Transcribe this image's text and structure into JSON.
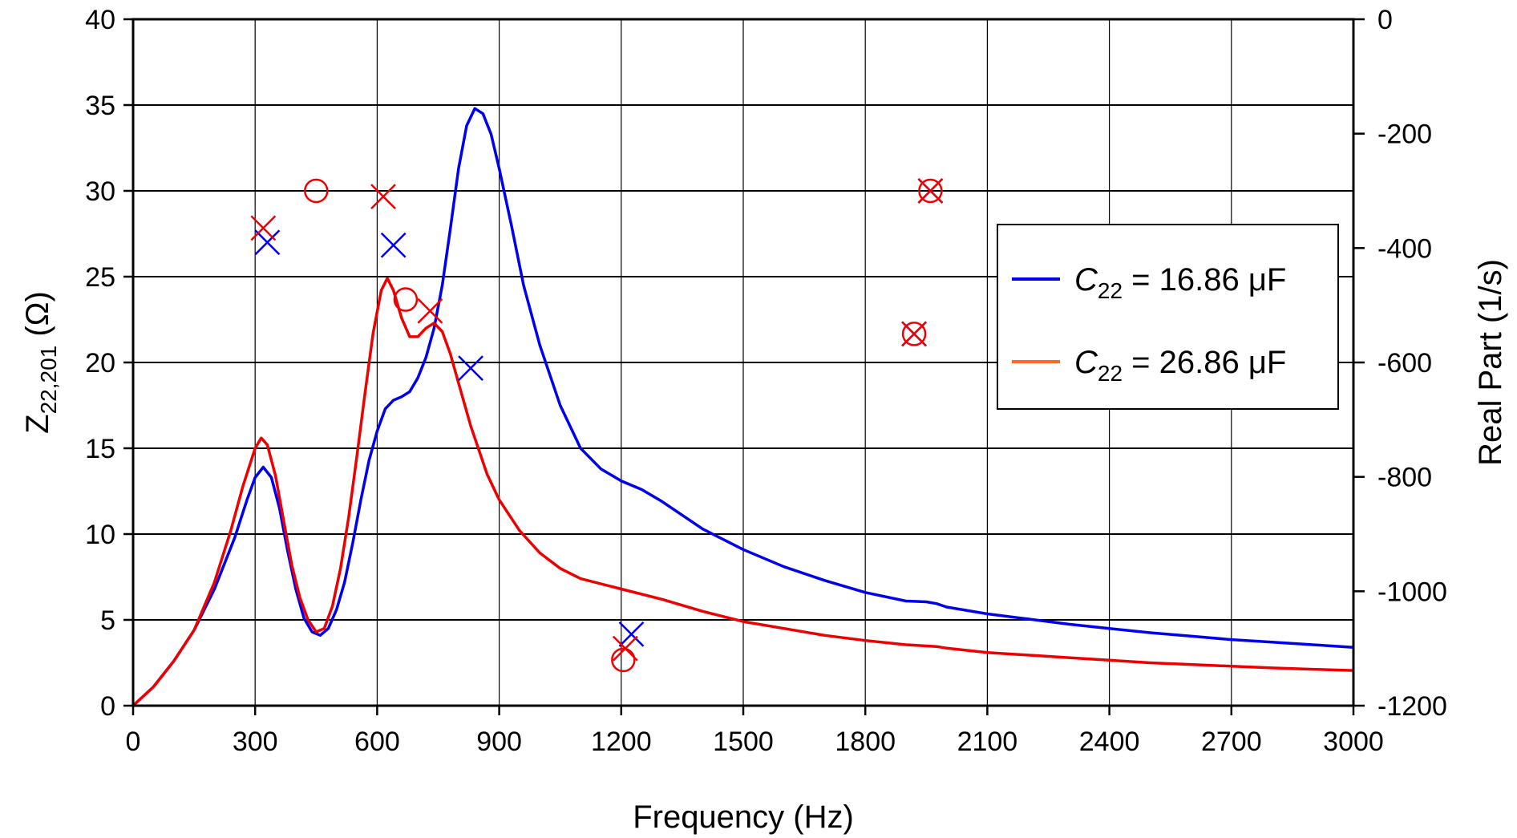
{
  "chart_data": {
    "type": "line",
    "xlabel": "Frequency (Hz)",
    "ylabel": "Z",
    "ylabel_sub": "22,201",
    "ylabel_unit": " (Ω)",
    "y2label": "Real Part (1/s)",
    "xlim": [
      0,
      3000
    ],
    "ylim": [
      0,
      40
    ],
    "y2lim": [
      -1200,
      0
    ],
    "xticks": [
      0,
      300,
      600,
      900,
      1200,
      1500,
      1800,
      2100,
      2400,
      2700,
      3000
    ],
    "yticks": [
      0,
      5,
      10,
      15,
      20,
      25,
      30,
      35,
      40
    ],
    "y2ticks": [
      0,
      -200,
      -400,
      -600,
      -800,
      -1000,
      -1200
    ],
    "grid": true,
    "legend_position": "right",
    "series": [
      {
        "name_italic": "C",
        "name_sub": "22",
        "name_rest": " = 16.86 μF",
        "color": "#0000ee",
        "points": [
          [
            0,
            0
          ],
          [
            50,
            1.1
          ],
          [
            100,
            2.6
          ],
          [
            150,
            4.4
          ],
          [
            200,
            6.8
          ],
          [
            250,
            9.8
          ],
          [
            280,
            12.0
          ],
          [
            300,
            13.3
          ],
          [
            320,
            13.9
          ],
          [
            340,
            13.3
          ],
          [
            360,
            11.5
          ],
          [
            380,
            9.0
          ],
          [
            400,
            6.8
          ],
          [
            420,
            5.1
          ],
          [
            440,
            4.3
          ],
          [
            460,
            4.1
          ],
          [
            480,
            4.5
          ],
          [
            500,
            5.6
          ],
          [
            520,
            7.2
          ],
          [
            540,
            9.5
          ],
          [
            560,
            12.0
          ],
          [
            580,
            14.3
          ],
          [
            600,
            16.0
          ],
          [
            620,
            17.3
          ],
          [
            640,
            17.8
          ],
          [
            660,
            18.0
          ],
          [
            680,
            18.3
          ],
          [
            700,
            19.1
          ],
          [
            720,
            20.3
          ],
          [
            740,
            22.0
          ],
          [
            760,
            24.5
          ],
          [
            780,
            27.8
          ],
          [
            800,
            31.3
          ],
          [
            820,
            33.8
          ],
          [
            840,
            34.8
          ],
          [
            860,
            34.5
          ],
          [
            880,
            33.3
          ],
          [
            900,
            31.3
          ],
          [
            930,
            28.0
          ],
          [
            960,
            24.5
          ],
          [
            1000,
            21.0
          ],
          [
            1050,
            17.5
          ],
          [
            1100,
            15.0
          ],
          [
            1150,
            13.8
          ],
          [
            1200,
            13.1
          ],
          [
            1250,
            12.6
          ],
          [
            1300,
            11.9
          ],
          [
            1400,
            10.3
          ],
          [
            1500,
            9.1
          ],
          [
            1600,
            8.1
          ],
          [
            1700,
            7.3
          ],
          [
            1800,
            6.6
          ],
          [
            1900,
            6.1
          ],
          [
            1950,
            6.05
          ],
          [
            1975,
            5.95
          ],
          [
            2000,
            5.75
          ],
          [
            2100,
            5.35
          ],
          [
            2200,
            5.05
          ],
          [
            2300,
            4.75
          ],
          [
            2400,
            4.5
          ],
          [
            2500,
            4.25
          ],
          [
            2600,
            4.05
          ],
          [
            2700,
            3.85
          ],
          [
            2800,
            3.7
          ],
          [
            2900,
            3.55
          ],
          [
            3000,
            3.4
          ]
        ],
        "poles_x": [
          [
            330,
            -390
          ],
          [
            640,
            -395
          ],
          [
            830,
            -610
          ],
          [
            1225,
            -1075
          ],
          [
            1960,
            -300
          ],
          [
            1920,
            -550
          ]
        ]
      },
      {
        "name_italic": "C",
        "name_sub": "22",
        "name_rest": " = 26.86 μF",
        "color": "#ee0000",
        "legend_color": "#ff6622",
        "points": [
          [
            0,
            0
          ],
          [
            50,
            1.1
          ],
          [
            100,
            2.6
          ],
          [
            150,
            4.4
          ],
          [
            200,
            7.2
          ],
          [
            240,
            10.2
          ],
          [
            270,
            12.8
          ],
          [
            300,
            15.0
          ],
          [
            315,
            15.6
          ],
          [
            330,
            15.2
          ],
          [
            350,
            13.4
          ],
          [
            370,
            10.8
          ],
          [
            390,
            8.2
          ],
          [
            410,
            6.3
          ],
          [
            430,
            5.0
          ],
          [
            450,
            4.3
          ],
          [
            470,
            4.5
          ],
          [
            490,
            5.8
          ],
          [
            510,
            8.0
          ],
          [
            530,
            11.0
          ],
          [
            550,
            14.5
          ],
          [
            570,
            18.2
          ],
          [
            590,
            21.7
          ],
          [
            610,
            24.2
          ],
          [
            625,
            24.9
          ],
          [
            640,
            24.2
          ],
          [
            660,
            22.6
          ],
          [
            680,
            21.5
          ],
          [
            700,
            21.5
          ],
          [
            720,
            22.0
          ],
          [
            740,
            22.3
          ],
          [
            760,
            21.8
          ],
          [
            780,
            20.5
          ],
          [
            800,
            18.8
          ],
          [
            830,
            16.3
          ],
          [
            870,
            13.5
          ],
          [
            900,
            12.0
          ],
          [
            950,
            10.2
          ],
          [
            1000,
            8.9
          ],
          [
            1050,
            8.0
          ],
          [
            1100,
            7.4
          ],
          [
            1200,
            6.8
          ],
          [
            1300,
            6.2
          ],
          [
            1400,
            5.5
          ],
          [
            1500,
            4.9
          ],
          [
            1600,
            4.5
          ],
          [
            1700,
            4.1
          ],
          [
            1800,
            3.8
          ],
          [
            1900,
            3.55
          ],
          [
            1975,
            3.45
          ],
          [
            2000,
            3.35
          ],
          [
            2100,
            3.1
          ],
          [
            2200,
            2.95
          ],
          [
            2300,
            2.8
          ],
          [
            2400,
            2.65
          ],
          [
            2500,
            2.5
          ],
          [
            2600,
            2.4
          ],
          [
            2700,
            2.3
          ],
          [
            2800,
            2.2
          ],
          [
            2900,
            2.12
          ],
          [
            3000,
            2.05
          ]
        ],
        "poles_x": [
          [
            320,
            -365
          ],
          [
            615,
            -310
          ],
          [
            730,
            -510
          ],
          [
            1210,
            -1100
          ],
          [
            1960,
            -300
          ],
          [
            1920,
            -550
          ]
        ],
        "zeros_o": [
          [
            450,
            -300
          ],
          [
            670,
            -490
          ],
          [
            1205,
            -1120
          ],
          [
            1960,
            -300
          ],
          [
            1920,
            -550
          ]
        ]
      }
    ]
  }
}
